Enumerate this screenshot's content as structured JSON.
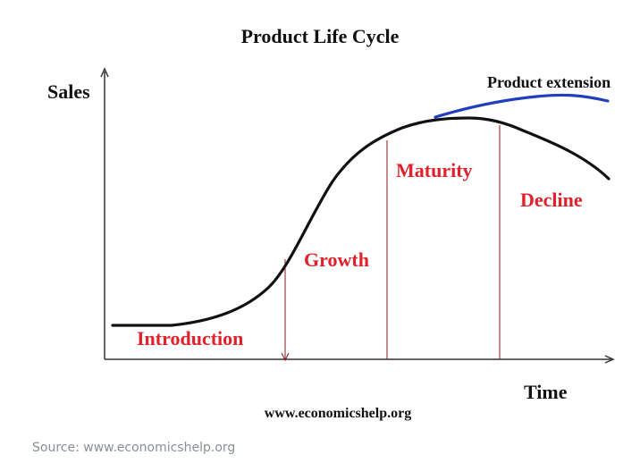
{
  "diagram": {
    "title": "Product Life Cycle",
    "y_axis_label": "Sales",
    "x_axis_label": "Time",
    "extension_label": "Product extension",
    "stages": [
      {
        "label": "Introduction"
      },
      {
        "label": "Growth"
      },
      {
        "label": "Maturity"
      },
      {
        "label": "Decline"
      }
    ],
    "source_url": "www.economicshelp.org",
    "colors": {
      "curve": "#111111",
      "extension": "#1f3fbf",
      "stage_text": "#e0202a",
      "axis": "#333333",
      "divider": "#8b1a1a"
    }
  },
  "caption": "Source: www.economicshelp.org"
}
